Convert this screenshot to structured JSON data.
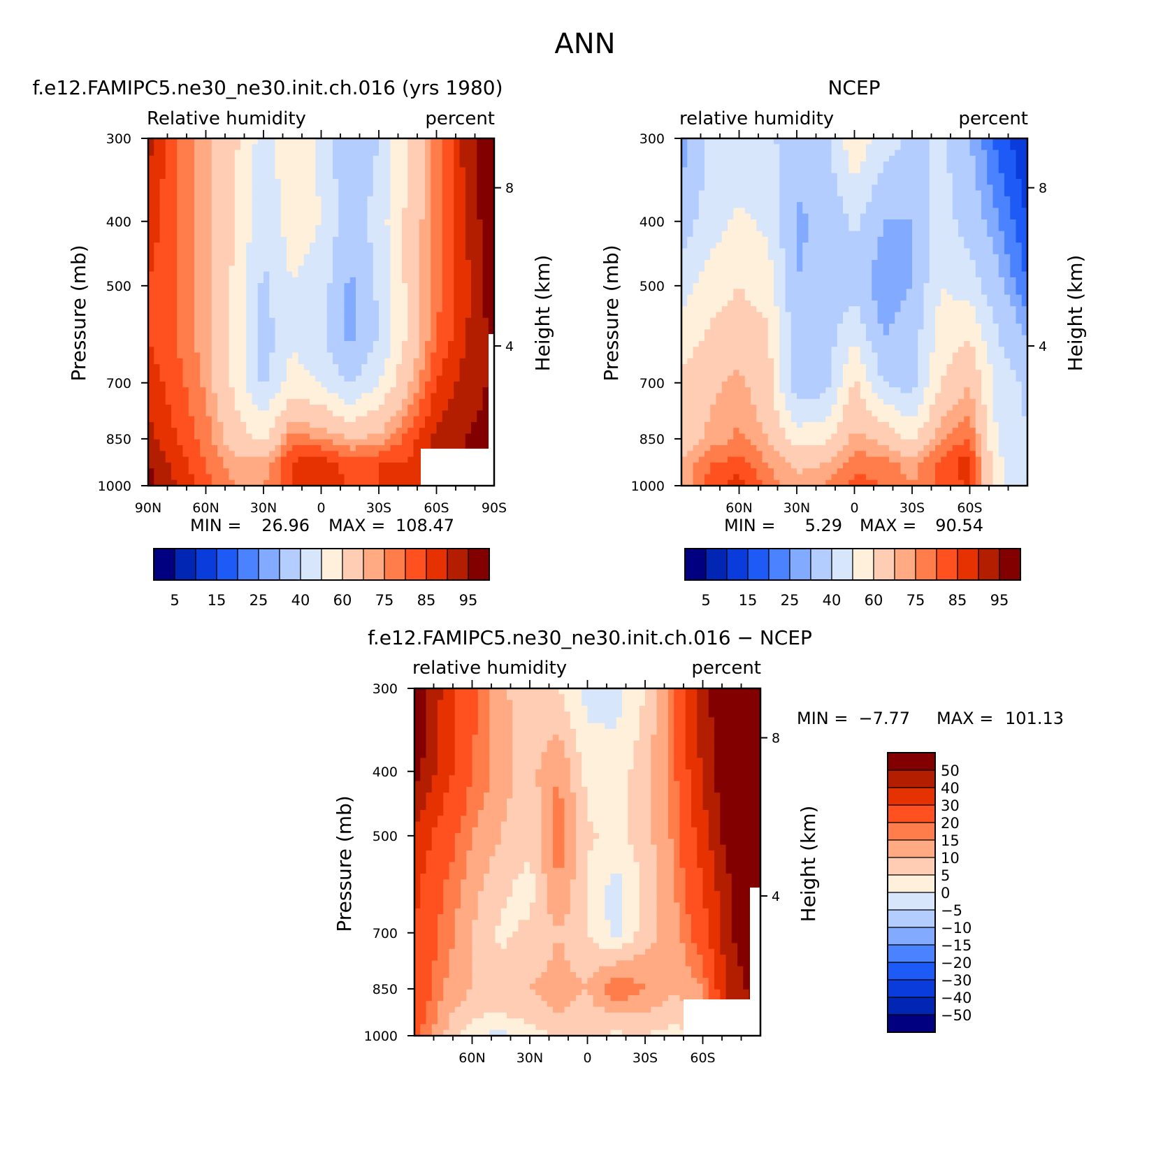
{
  "figure": {
    "title": "ANN"
  },
  "colorbar_absolute": {
    "labels": [
      "5",
      "15",
      "25",
      "40",
      "60",
      "75",
      "85",
      "95"
    ],
    "colors": [
      "#000080",
      "#0026b3",
      "#0a3cdc",
      "#1e5af5",
      "#4b82ff",
      "#82aaff",
      "#b4cdff",
      "#d7e6fa",
      "#fff0dc",
      "#ffcdb4",
      "#ffaa82",
      "#ff7d4b",
      "#ff5020",
      "#e63200",
      "#b41e00",
      "#820000"
    ]
  },
  "colorbar_difference": {
    "labels": [
      "50",
      "40",
      "30",
      "20",
      "15",
      "10",
      "5",
      "0",
      "−5",
      "−10",
      "−15",
      "−20",
      "−30",
      "−40",
      "−50"
    ],
    "colors": [
      "#820000",
      "#b41e00",
      "#e63200",
      "#ff5020",
      "#ff7d4b",
      "#ffaa82",
      "#ffcdb4",
      "#fff0dc",
      "#d7e6fa",
      "#b4cdff",
      "#82aaff",
      "#4b82ff",
      "#1e5af5",
      "#0a3cdc",
      "#0026b3",
      "#000080"
    ]
  },
  "panels": [
    {
      "id": "model",
      "title": "f.e12.FAMIPC5.ne30_ne30.init.ch.016 (yrs 1980)",
      "left_label": "Relative humidity",
      "right_label": "percent",
      "ylabel": "Pressure (mb)",
      "y2label": "Height (km)",
      "y_ticks": [
        "300",
        "400",
        "500",
        "700",
        "850",
        "1000"
      ],
      "y2_ticks": [
        "8",
        "4"
      ],
      "x_ticks": [
        "90N",
        "60N",
        "30N",
        "0",
        "30S",
        "60S",
        "90S"
      ],
      "stats": {
        "min_label": "MIN =",
        "min": "26.96",
        "max_label": "MAX =",
        "max": "108.47"
      }
    },
    {
      "id": "ncep",
      "title": "NCEP",
      "left_label": "relative humidity",
      "right_label": "percent",
      "ylabel": "Pressure (mb)",
      "y2label": "Height (km)",
      "y_ticks": [
        "300",
        "400",
        "500",
        "700",
        "850",
        "1000"
      ],
      "y2_ticks": [
        "8",
        "4"
      ],
      "x_ticks": [
        "60N",
        "30N",
        "0",
        "30S",
        "60S"
      ],
      "stats": {
        "min_label": "MIN =",
        "min": "5.29",
        "max_label": "MAX =",
        "max": "90.54"
      }
    },
    {
      "id": "diff",
      "title": "f.e12.FAMIPC5.ne30_ne30.init.ch.016 − NCEP",
      "left_label": "relative humidity",
      "right_label": "percent",
      "ylabel": "Pressure (mb)",
      "y2label": "Height (km)",
      "y_ticks": [
        "300",
        "400",
        "500",
        "700",
        "850",
        "1000"
      ],
      "y2_ticks": [
        "8",
        "4"
      ],
      "x_ticks": [
        "60N",
        "30N",
        "0",
        "30S",
        "60S"
      ],
      "stats": {
        "min_label": "MIN =",
        "min": "−7.77",
        "max_label": "MAX =",
        "max": "101.13"
      }
    }
  ],
  "chart_data": [
    {
      "type": "heatmap",
      "title": "f.e12.FAMIPC5.ne30_ne30.init.ch.016 (yrs 1980)",
      "xlabel": "",
      "ylabel": "Pressure (mb)",
      "x_ticks": [
        "90N",
        "60N",
        "30N",
        "0",
        "30S",
        "60S",
        "90S"
      ],
      "y_ticks": [
        300,
        400,
        500,
        700,
        850,
        1000
      ],
      "y_scale": "log",
      "latitudes": [
        90,
        75,
        60,
        45,
        30,
        15,
        0,
        -15,
        -30,
        -45,
        -60,
        -75,
        -90
      ],
      "pressure_levels": [
        300,
        400,
        500,
        600,
        700,
        850,
        925,
        1000
      ],
      "values": [
        [
          92,
          80,
          72,
          62,
          45,
          58,
          48,
          30,
          40,
          60,
          78,
          92,
          100
        ],
        [
          88,
          80,
          72,
          60,
          42,
          55,
          50,
          32,
          45,
          62,
          78,
          90,
          100
        ],
        [
          85,
          80,
          72,
          58,
          38,
          50,
          45,
          28,
          42,
          62,
          78,
          88,
          100
        ],
        [
          85,
          80,
          72,
          58,
          35,
          48,
          42,
          28,
          40,
          62,
          80,
          90,
          96
        ],
        [
          88,
          82,
          74,
          58,
          38,
          55,
          50,
          38,
          50,
          68,
          85,
          92,
          96
        ],
        [
          92,
          85,
          78,
          65,
          58,
          78,
          75,
          70,
          72,
          82,
          92,
          95,
          97
        ],
        [
          95,
          88,
          80,
          72,
          72,
          86,
          88,
          82,
          85,
          85,
          92,
          95,
          97
        ],
        [
          97,
          90,
          82,
          75,
          75,
          85,
          88,
          85,
          85,
          85,
          92,
          95,
          97
        ]
      ],
      "min": 26.96,
      "max": 108.47
    },
    {
      "type": "heatmap",
      "title": "NCEP",
      "xlabel": "",
      "ylabel": "Pressure (mb)",
      "x_ticks": [
        "60N",
        "30N",
        "0",
        "30S",
        "60S"
      ],
      "y_ticks": [
        300,
        400,
        500,
        700,
        850,
        1000
      ],
      "y_scale": "log",
      "latitudes": [
        90,
        75,
        60,
        45,
        30,
        15,
        0,
        -15,
        -30,
        -45,
        -60,
        -75,
        -90
      ],
      "pressure_levels": [
        300,
        400,
        500,
        600,
        700,
        850,
        925,
        1000
      ],
      "values": [
        [
          25,
          42,
          42,
          42,
          35,
          38,
          58,
          45,
          38,
          42,
          30,
          18,
          10
        ],
        [
          35,
          45,
          52,
          48,
          28,
          32,
          42,
          30,
          30,
          45,
          35,
          25,
          15
        ],
        [
          45,
          55,
          60,
          55,
          30,
          35,
          35,
          25,
          30,
          50,
          45,
          32,
          20
        ],
        [
          55,
          62,
          66,
          62,
          35,
          35,
          50,
          30,
          35,
          55,
          60,
          40,
          30
        ],
        [
          62,
          68,
          72,
          64,
          32,
          35,
          62,
          40,
          35,
          60,
          70,
          45,
          38
        ],
        [
          65,
          72,
          76,
          70,
          55,
          58,
          72,
          68,
          58,
          75,
          80,
          48,
          40
        ],
        [
          70,
          80,
          82,
          75,
          68,
          70,
          78,
          78,
          72,
          82,
          88,
          52,
          40
        ],
        [
          72,
          82,
          88,
          78,
          72,
          75,
          82,
          80,
          75,
          82,
          86,
          52,
          40
        ]
      ],
      "min": 5.29,
      "max": 90.54
    },
    {
      "type": "heatmap",
      "title": "f.e12.FAMIPC5.ne30_ne30.init.ch.016 − NCEP",
      "xlabel": "",
      "ylabel": "Pressure (mb)",
      "x_ticks": [
        "60N",
        "30N",
        "0",
        "30S",
        "60S"
      ],
      "y_ticks": [
        300,
        400,
        500,
        700,
        850,
        1000
      ],
      "y_scale": "log",
      "latitudes": [
        90,
        75,
        60,
        45,
        30,
        15,
        0,
        -15,
        -30,
        -45,
        -60,
        -75,
        -90
      ],
      "pressure_levels": [
        300,
        400,
        500,
        600,
        700,
        850,
        925,
        1000
      ],
      "values": [
        [
          62,
          38,
          22,
          12,
          5,
          5,
          -2,
          -2,
          5,
          18,
          45,
          65,
          75
        ],
        [
          55,
          35,
          20,
          12,
          8,
          15,
          3,
          2,
          8,
          18,
          42,
          62,
          72
        ],
        [
          38,
          25,
          15,
          10,
          6,
          18,
          6,
          3,
          8,
          16,
          35,
          58,
          72
        ],
        [
          32,
          20,
          12,
          6,
          3,
          15,
          4,
          -2,
          6,
          14,
          30,
          50,
          62
        ],
        [
          30,
          18,
          10,
          4,
          6,
          10,
          5,
          -2,
          8,
          12,
          25,
          50,
          60
        ],
        [
          27,
          15,
          10,
          7,
          10,
          12,
          10,
          20,
          15,
          10,
          15,
          45,
          55
        ],
        [
          25,
          12,
          6,
          5,
          8,
          10,
          8,
          10,
          10,
          8,
          8,
          40,
          55
        ],
        [
          22,
          10,
          2,
          -2,
          2,
          6,
          6,
          4,
          5,
          2,
          8,
          40,
          55
        ]
      ],
      "min": -7.77,
      "max": 101.13
    }
  ]
}
